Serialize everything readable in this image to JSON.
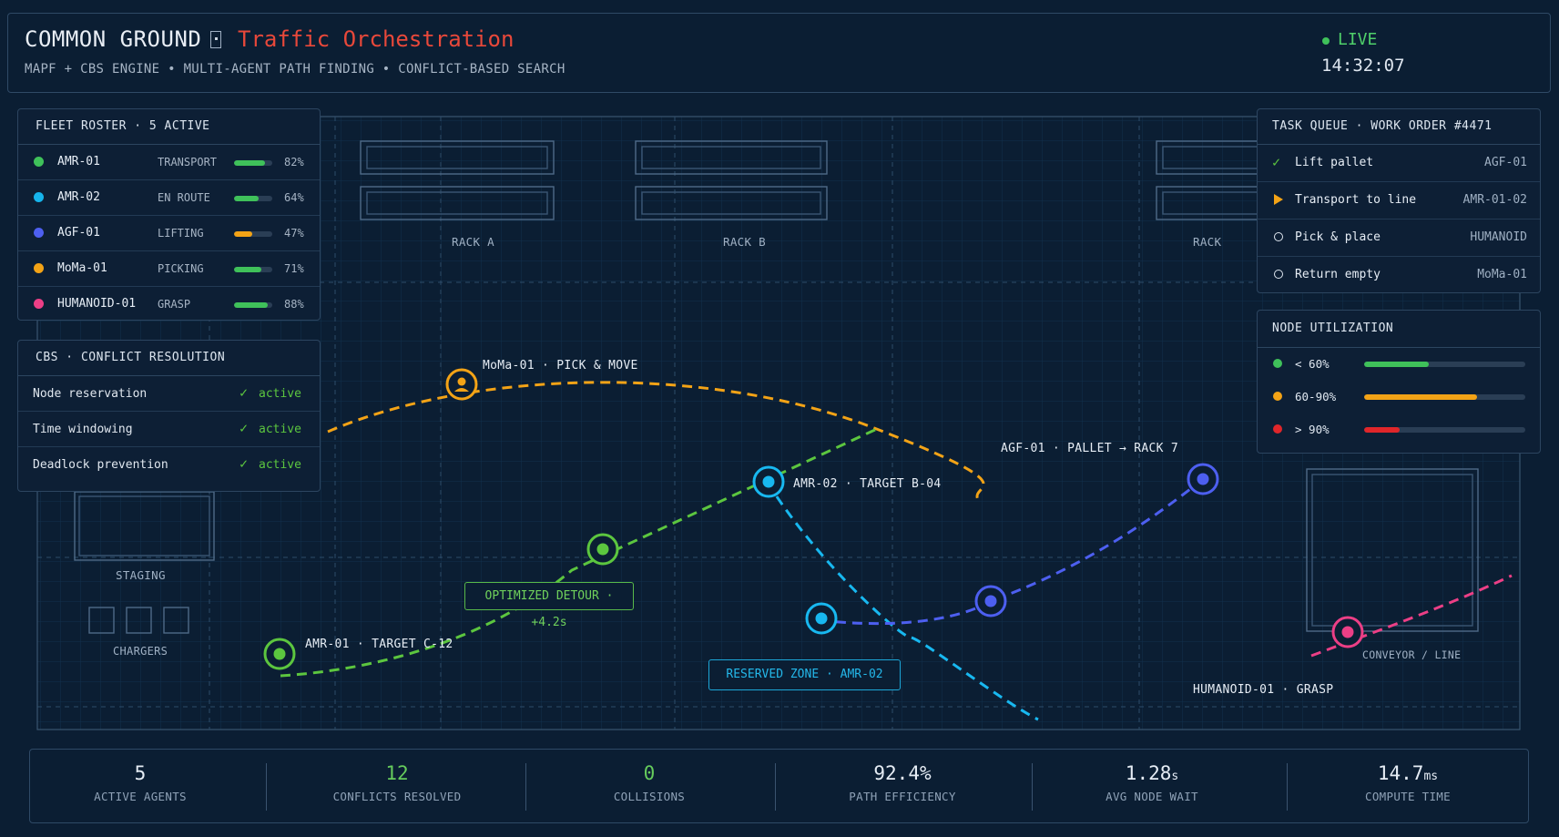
{
  "header": {
    "brand": "COMMON GROUND",
    "title": "Traffic Orchestration",
    "subtitle": "MAPF + CBS ENGINE • MULTI-AGENT PATH FINDING • CONFLICT-BASED SEARCH",
    "status": "LIVE",
    "time": "14:32:07"
  },
  "fleet": {
    "title": "FLEET ROSTER  ·  5 ACTIVE",
    "agents": [
      {
        "name": "AMR-01",
        "state": "TRANSPORT",
        "pct": "82%",
        "value": 0.82,
        "color": "#3fc15a",
        "bar": "#3fc15a"
      },
      {
        "name": "AMR-02",
        "state": "EN ROUTE",
        "pct": "64%",
        "value": 0.64,
        "color": "#16b4ec",
        "bar": "#3fc15a"
      },
      {
        "name": "AGF-01",
        "state": "LIFTING",
        "pct": "47%",
        "value": 0.47,
        "color": "#4d5ff0",
        "bar": "#f3a316"
      },
      {
        "name": "MoMa-01",
        "state": "PICKING",
        "pct": "71%",
        "value": 0.71,
        "color": "#f3a316",
        "bar": "#3fc15a"
      },
      {
        "name": "HUMANOID-01",
        "state": "GRASP",
        "pct": "88%",
        "value": 0.88,
        "color": "#ec3f86",
        "bar": "#3fc15a"
      }
    ]
  },
  "cbs": {
    "title": "CBS  ·  CONFLICT RESOLUTION",
    "items": [
      {
        "label": "Node reservation",
        "status": "active"
      },
      {
        "label": "Time windowing",
        "status": "active"
      },
      {
        "label": "Deadlock prevention",
        "status": "active"
      }
    ]
  },
  "tasks": {
    "title": "TASK QUEUE  ·  WORK ORDER #4471",
    "items": [
      {
        "label": "Lift pallet",
        "agent": "AGF-01",
        "state": "done"
      },
      {
        "label": "Transport to line",
        "agent": "AMR-01-02",
        "state": "active"
      },
      {
        "label": "Pick & place",
        "agent": "HUMANOID",
        "state": "pending"
      },
      {
        "label": "Return empty",
        "agent": "MoMa-01",
        "state": "pending"
      }
    ]
  },
  "util": {
    "title": "NODE UTILIZATION",
    "items": [
      {
        "label": "< 60%",
        "value": 0.4,
        "color": "#3fc15a"
      },
      {
        "label": "60-90%",
        "value": 0.7,
        "color": "#f3a316"
      },
      {
        "label": "> 90%",
        "value": 0.22,
        "color": "#e0262a"
      }
    ]
  },
  "map": {
    "rack_a": "RACK A",
    "rack_b": "RACK B",
    "rack_c": "RACK",
    "staging": "STAGING",
    "chargers": "CHARGERS",
    "conveyor": "CONVEYOR / LINE",
    "labels": {
      "moma": "MoMa-01 · PICK & MOVE",
      "amr02": "AMR-02 · TARGET B-04",
      "agf": "AGF-01 · PALLET → RACK 7",
      "amr01": "AMR-01 · TARGET C-12",
      "humanoid": "HUMANOID-01 · GRASP",
      "detour": "OPTIMIZED DETOUR · +4.2s",
      "reserved": "RESERVED ZONE · AMR-02"
    }
  },
  "stats": [
    {
      "value": "5",
      "unit": "",
      "label": "ACTIVE AGENTS",
      "color": "#e6edf5"
    },
    {
      "value": "12",
      "unit": "",
      "label": "CONFLICTS RESOLVED",
      "color": "#66cc5c"
    },
    {
      "value": "0",
      "unit": "",
      "label": "COLLISIONS",
      "color": "#66cc5c"
    },
    {
      "value": "92.4%",
      "unit": "",
      "label": "PATH EFFICIENCY",
      "color": "#e6edf5"
    },
    {
      "value": "1.28",
      "unit": "s",
      "label": "AVG NODE WAIT",
      "color": "#e6edf5"
    },
    {
      "value": "14.7",
      "unit": "ms",
      "label": "COMPUTE TIME",
      "color": "#e6edf5"
    }
  ],
  "colors": {
    "amr01": "#5cc63f",
    "amr02": "#18b8f0",
    "agf": "#4d5ff0",
    "moma": "#f3a316",
    "humanoid": "#ec3f86",
    "live": "#3fc15a",
    "title": "#e8483a"
  }
}
